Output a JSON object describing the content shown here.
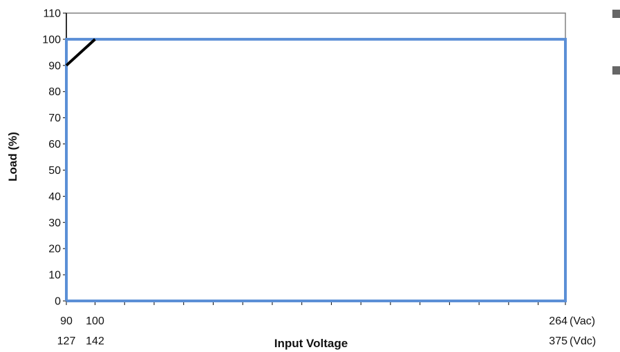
{
  "chart_data": {
    "type": "line",
    "title": "",
    "xlabel": "Input Voltage",
    "ylabel": "Load (%)",
    "xlim": [
      90,
      264
    ],
    "ylim": [
      0,
      110
    ],
    "y_ticks": [
      "0",
      "10",
      "20",
      "30",
      "40",
      "50",
      "60",
      "70",
      "80",
      "90",
      "100",
      "110"
    ],
    "x_tick_labels": [
      {
        "x": 90,
        "vac": "90",
        "vdc": "127"
      },
      {
        "x": 100,
        "vac": "100",
        "vdc": "142"
      },
      {
        "x": 264,
        "vac": "264",
        "vdc": "375"
      }
    ],
    "x_unit_labels": {
      "vac": "(Vac)",
      "vdc": "(Vdc)"
    },
    "x_minor_ticks": [
      90,
      100,
      110.3,
      120.6,
      130.9,
      141.2,
      151.5,
      161.8,
      172.1,
      182.4,
      192.7,
      203,
      213.3,
      223.6,
      233.9,
      244.2,
      254.5,
      264
    ],
    "grid": false,
    "series": [
      {
        "color": "#000000",
        "x": [
          90,
          100,
          264
        ],
        "y": [
          90,
          100,
          100
        ]
      },
      {
        "color": "#5b8fd6",
        "x": [
          90,
          90,
          264,
          264,
          90
        ],
        "y": [
          0,
          100,
          100,
          0,
          0
        ]
      }
    ],
    "colors": {
      "black_series": "#000000",
      "blue_series": "#5b8fd6",
      "legend_marker": "#666666"
    }
  }
}
